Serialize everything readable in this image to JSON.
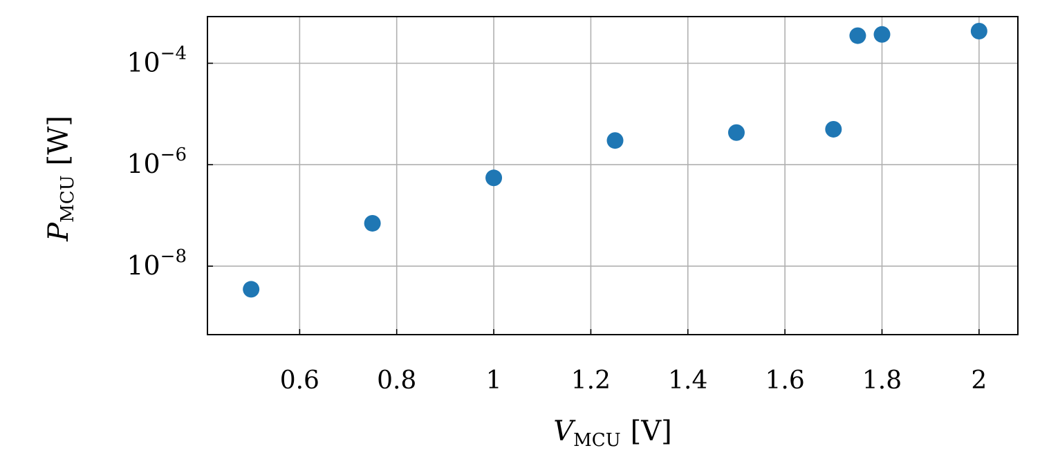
{
  "chart_data": {
    "type": "scatter",
    "title": "",
    "xlabel": {
      "symbol": "V",
      "subscript": "MCU",
      "unit": "[V]"
    },
    "ylabel": {
      "symbol": "P",
      "subscript": "MCU",
      "unit": "[W]"
    },
    "xscale": "linear",
    "yscale": "log",
    "xlim": [
      0.41,
      2.08
    ],
    "ylim_exponent": [
      -9.35,
      -3.08
    ],
    "xticks": [
      0.6,
      0.8,
      1.0,
      1.2,
      1.4,
      1.6,
      1.8,
      2.0
    ],
    "xtick_labels": [
      "0.6",
      "0.8",
      "1",
      "1.2",
      "1.4",
      "1.6",
      "1.8",
      "2"
    ],
    "ytick_exponents": [
      -8,
      -6,
      -4
    ],
    "ytick_labels": [
      "10^-8",
      "10^-6",
      "10^-4"
    ],
    "grid": true,
    "marker_color": "#1f77b4",
    "points": [
      {
        "x": 0.5,
        "y": 3.5e-09
      },
      {
        "x": 0.75,
        "y": 7e-08
      },
      {
        "x": 1.0,
        "y": 5.5e-07
      },
      {
        "x": 1.25,
        "y": 3e-06
      },
      {
        "x": 1.5,
        "y": 4.3e-06
      },
      {
        "x": 1.7,
        "y": 5e-06
      },
      {
        "x": 1.75,
        "y": 0.00035
      },
      {
        "x": 1.8,
        "y": 0.00037
      },
      {
        "x": 2.0,
        "y": 0.00043
      }
    ]
  }
}
